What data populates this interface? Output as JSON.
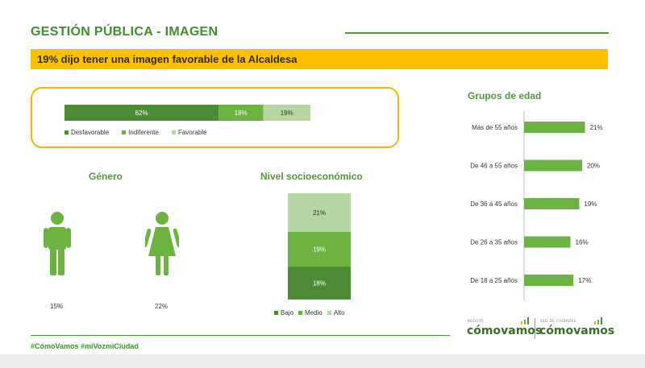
{
  "header": {
    "title": "GESTIÓN PÚBLICA - IMAGEN",
    "banner": "19% dijo tener una imagen favorable de la Alcaldesa"
  },
  "colors": {
    "dark_green": "#4d8a35",
    "mid_green": "#6cb342",
    "light_green": "#b5d6a3",
    "accent_yellow": "#fcc000",
    "title_green": "#3f8f2c"
  },
  "footer": {
    "hashtags": "#CómoVamos #miVozmiCiudad",
    "logo_left_small": "BOGOTÁ",
    "logo_left_main": "cómovamos",
    "logo_right_small": "RED DE CIUDADES",
    "logo_right_main": "cómovamos"
  },
  "chart_data": [
    {
      "type": "bar",
      "orientation": "horizontal-stacked",
      "categories": [
        "Desfavorable",
        "Indiferente",
        "Favorable"
      ],
      "values": [
        62,
        18,
        19
      ],
      "labels": [
        "62%",
        "18%",
        "19%"
      ],
      "legend": [
        "Desfavorable",
        "Indiferente",
        "Favorable"
      ],
      "legend_position": "bottom"
    },
    {
      "type": "bar",
      "title": "Género",
      "categories": [
        "Hombre",
        "Mujer"
      ],
      "icons": [
        "man-icon",
        "woman-icon"
      ],
      "values": [
        15,
        22
      ],
      "labels": [
        "15%",
        "22%"
      ]
    },
    {
      "type": "bar",
      "orientation": "vertical-stacked",
      "title": "Nivel socioeconómico",
      "categories": [
        "Bajo",
        "Medio",
        "Alto"
      ],
      "values": [
        18,
        19,
        21
      ],
      "labels": [
        "18%",
        "19%",
        "21%"
      ],
      "legend": [
        "Bajo",
        "Medio",
        "Alto"
      ],
      "legend_position": "bottom"
    },
    {
      "type": "bar",
      "orientation": "horizontal",
      "title": "Grupos de edad",
      "categories": [
        "Más de 55 años",
        "De 46 a 55 años",
        "De 36 a 45 años",
        "De 26 a 35 años",
        "De 18 a 25 años"
      ],
      "values": [
        21,
        20,
        19,
        16,
        17
      ],
      "labels": [
        "21%",
        "20%",
        "19%",
        "16%",
        "17%"
      ],
      "xlim": [
        0,
        25
      ]
    }
  ]
}
